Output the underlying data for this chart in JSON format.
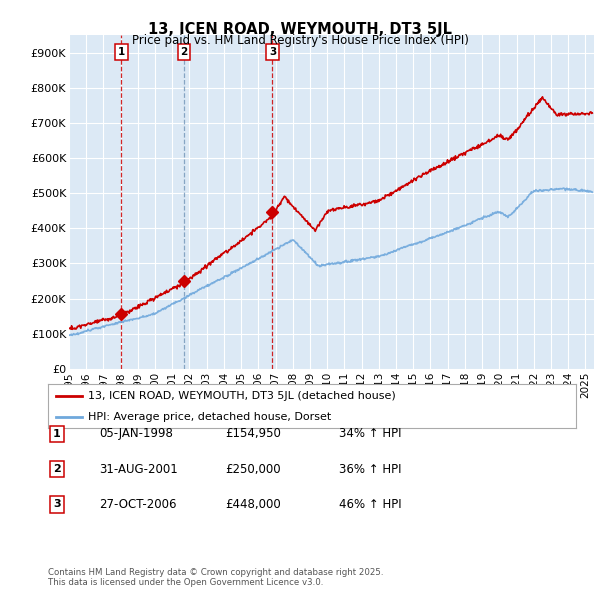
{
  "title": "13, ICEN ROAD, WEYMOUTH, DT3 5JL",
  "subtitle": "Price paid vs. HM Land Registry's House Price Index (HPI)",
  "ylim": [
    0,
    950000
  ],
  "yticks": [
    0,
    100000,
    200000,
    300000,
    400000,
    500000,
    600000,
    700000,
    800000,
    900000
  ],
  "ytick_labels": [
    "£0",
    "£100K",
    "£200K",
    "£300K",
    "£400K",
    "£500K",
    "£600K",
    "£700K",
    "£800K",
    "£900K"
  ],
  "bg_color": "#dce9f5",
  "grid_color": "#ffffff",
  "sale_color": "#cc0000",
  "hpi_color": "#6fa8dc",
  "vline_colors": [
    "#cc0000",
    "#7799bb",
    "#cc0000"
  ],
  "purchase_years": [
    1998.04,
    2001.67,
    2006.82
  ],
  "purchase_prices": [
    154950,
    250000,
    448000
  ],
  "purchase_labels": [
    "1",
    "2",
    "3"
  ],
  "legend_sale": "13, ICEN ROAD, WEYMOUTH, DT3 5JL (detached house)",
  "legend_hpi": "HPI: Average price, detached house, Dorset",
  "table_entries": [
    {
      "num": "1",
      "date": "05-JAN-1998",
      "price": "£154,950",
      "hpi": "34% ↑ HPI"
    },
    {
      "num": "2",
      "date": "31-AUG-2001",
      "price": "£250,000",
      "hpi": "36% ↑ HPI"
    },
    {
      "num": "3",
      "date": "27-OCT-2006",
      "price": "£448,000",
      "hpi": "46% ↑ HPI"
    }
  ],
  "footnote1": "Contains HM Land Registry data © Crown copyright and database right 2025.",
  "footnote2": "This data is licensed under the Open Government Licence v3.0.",
  "xmin": 1995,
  "xmax": 2025.5,
  "xticks": [
    1995,
    1996,
    1997,
    1998,
    1999,
    2000,
    2001,
    2002,
    2003,
    2004,
    2005,
    2006,
    2007,
    2008,
    2009,
    2010,
    2011,
    2012,
    2013,
    2014,
    2015,
    2016,
    2017,
    2018,
    2019,
    2020,
    2021,
    2022,
    2023,
    2024,
    2025
  ]
}
